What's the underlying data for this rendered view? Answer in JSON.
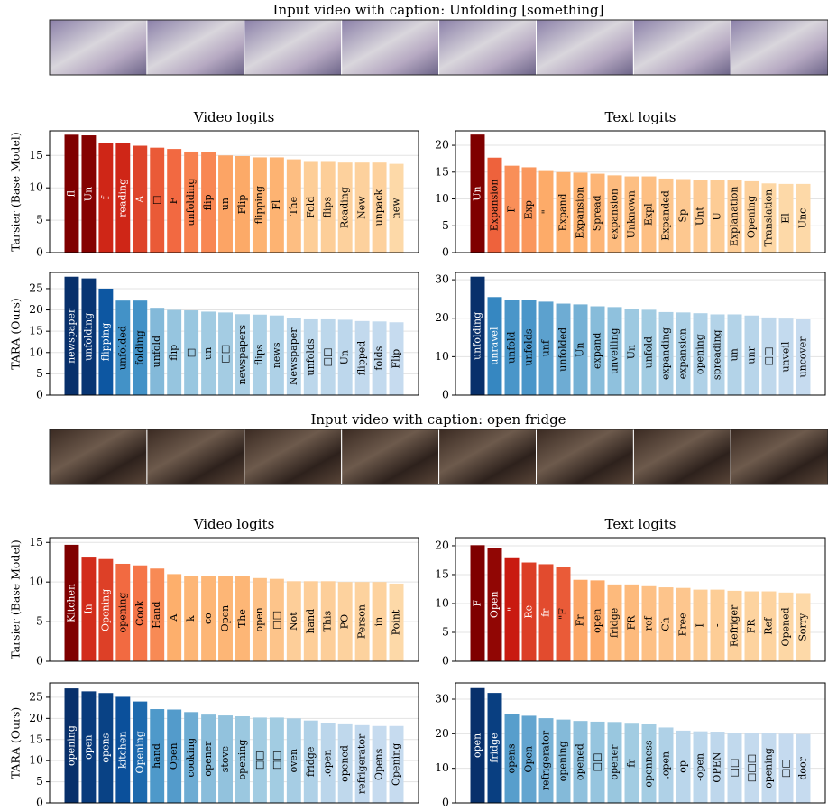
{
  "videos": [
    {
      "caption": "Input video with caption: Unfolding [something]"
    },
    {
      "caption": "Input video with caption: open fridge"
    }
  ],
  "chart_data": [
    {
      "type": "bar",
      "title": "Video logits",
      "ylabel": "Tarsier (Base Model)",
      "ylim": [
        0,
        18.8
      ],
      "yticks": [
        0,
        5,
        10,
        15
      ],
      "grid": true,
      "colormap": [
        "#7f0000",
        "#c8190f",
        "#f46d43",
        "#fdae6b",
        "#fdd9a8"
      ],
      "categories": [
        "fl",
        "Un",
        "f",
        "reading",
        "A",
        "□",
        "F",
        "unfolding",
        "flip",
        "un",
        "Flip",
        "flipping",
        "Fl",
        "The",
        "Fold",
        "flips",
        "Reading",
        "New",
        "unpack",
        "new"
      ],
      "values": [
        18.2,
        18.1,
        16.9,
        16.9,
        16.5,
        16.2,
        16.0,
        15.6,
        15.5,
        15.0,
        14.9,
        14.7,
        14.7,
        14.4,
        14.0,
        14.0,
        13.9,
        13.9,
        13.9,
        13.7
      ]
    },
    {
      "type": "bar",
      "title": "Text logits",
      "ylim": [
        0,
        22.7
      ],
      "yticks": [
        0,
        5,
        10,
        15,
        20
      ],
      "grid": true,
      "colormap": [
        "#7f0000",
        "#c8190f",
        "#f46d43",
        "#fdae6b",
        "#fdd9a8"
      ],
      "categories": [
        "Un",
        "Expansion",
        "F",
        "Exp",
        "\"",
        "Expand",
        "Expansion",
        "Spread",
        "expansion",
        "Unknown",
        "Expl",
        "Expanded",
        "Sp",
        "Unt",
        "U",
        "Explanation",
        "Opening",
        "Translation",
        "El",
        "Unc"
      ],
      "values": [
        22.0,
        17.7,
        16.2,
        15.9,
        15.2,
        15.0,
        14.9,
        14.7,
        14.4,
        14.2,
        14.2,
        13.8,
        13.7,
        13.6,
        13.5,
        13.5,
        13.3,
        12.9,
        12.8,
        12.8
      ]
    },
    {
      "type": "bar",
      "ylabel": "TARA (Ours)",
      "ylim": [
        0,
        28.8
      ],
      "yticks": [
        0,
        5,
        10,
        15,
        20,
        25
      ],
      "grid": true,
      "colormap": [
        "#08306b",
        "#0b54a0",
        "#3a8cc4",
        "#9ecae1",
        "#c6dbef"
      ],
      "categories": [
        "newspaper",
        "unfolding",
        "flipping",
        "unfolded",
        "folding",
        "unfold",
        "flip",
        "□",
        "un",
        "□□",
        "newspapers",
        "flips",
        "news",
        "Newspaper",
        "unfolds",
        "□□",
        "Un",
        "flipped",
        "folds",
        "Flip"
      ],
      "values": [
        27.8,
        27.4,
        25.0,
        22.2,
        22.2,
        20.5,
        20.0,
        19.9,
        19.6,
        19.4,
        19.0,
        18.9,
        18.7,
        18.1,
        17.8,
        17.8,
        17.7,
        17.4,
        17.3,
        17.1
      ]
    },
    {
      "type": "bar",
      "ylim": [
        0,
        31.9
      ],
      "yticks": [
        0,
        10,
        20,
        30
      ],
      "grid": true,
      "colormap": [
        "#08306b",
        "#0b54a0",
        "#3a8cc4",
        "#9ecae1",
        "#c6dbef"
      ],
      "categories": [
        "unfolding",
        "unravel",
        "unfold",
        "unfolds",
        "unf",
        "unfolded",
        "Un",
        "expand",
        "unveiling",
        "Un",
        "unfold",
        "expanding",
        "expansion",
        "opening",
        "spreading",
        "un",
        "unr",
        "□□",
        "unveil",
        "uncover"
      ],
      "values": [
        30.8,
        25.5,
        24.8,
        24.8,
        24.3,
        23.8,
        23.6,
        23.1,
        22.9,
        22.5,
        22.2,
        21.6,
        21.5,
        21.3,
        21.0,
        21.0,
        20.7,
        20.2,
        19.9,
        19.7
      ]
    },
    {
      "type": "bar",
      "title": "Video logits",
      "ylabel": "Tarsier (Base Model)",
      "ylim": [
        0,
        15.6
      ],
      "yticks": [
        0,
        5,
        10,
        15
      ],
      "grid": true,
      "colormap": [
        "#7f0000",
        "#c8190f",
        "#f46d43",
        "#fdae6b",
        "#fdd9a8"
      ],
      "categories": [
        "Kitchen",
        "In",
        "Opening",
        "opening",
        "Cook",
        "Hand",
        "A",
        "k",
        "co",
        "Open",
        "The",
        "open",
        "□□",
        "Not",
        "hand",
        "This",
        "PO",
        "Person",
        "in",
        "Point"
      ],
      "values": [
        14.7,
        13.2,
        12.9,
        12.3,
        12.1,
        11.7,
        11.0,
        10.8,
        10.8,
        10.8,
        10.8,
        10.5,
        10.4,
        10.1,
        10.1,
        10.1,
        10.0,
        10.0,
        10.0,
        9.8
      ]
    },
    {
      "type": "bar",
      "title": "Text logits",
      "ylim": [
        0,
        21.4
      ],
      "yticks": [
        0,
        5,
        10,
        15,
        20
      ],
      "grid": true,
      "colormap": [
        "#7f0000",
        "#c8190f",
        "#f46d43",
        "#fdae6b",
        "#fdd9a8"
      ],
      "categories": [
        "F",
        "Open",
        "\"",
        "Re",
        "fr",
        "\"F",
        "Fr",
        "open",
        "fridge",
        "FR",
        "ref",
        "Ch",
        "Free",
        "I",
        "-",
        "Refriger",
        "FR",
        "Ref",
        "Opened",
        "Sorry"
      ],
      "values": [
        20.1,
        19.6,
        18.0,
        17.1,
        16.8,
        16.4,
        14.1,
        14.0,
        13.3,
        13.3,
        13.0,
        12.8,
        12.7,
        12.4,
        12.4,
        12.2,
        12.1,
        12.1,
        11.9,
        11.8
      ]
    },
    {
      "type": "bar",
      "ylabel": "TARA (Ours)",
      "ylim": [
        0,
        28.4
      ],
      "yticks": [
        0,
        5,
        10,
        15,
        20,
        25
      ],
      "grid": true,
      "colormap": [
        "#08306b",
        "#0b54a0",
        "#3a8cc4",
        "#9ecae1",
        "#c6dbef"
      ],
      "categories": [
        "opening",
        "open",
        "opens",
        "kitchen",
        "Opening",
        "hand",
        "Open",
        "cooking",
        "opener",
        "stove",
        "opening",
        "□□",
        "□□",
        "oven",
        "fridge",
        ".open",
        "opened",
        "refrigerator",
        "Opens",
        "Opening"
      ],
      "values": [
        27.1,
        26.4,
        26.0,
        25.1,
        24.0,
        22.2,
        22.1,
        21.5,
        20.9,
        20.7,
        20.5,
        20.2,
        20.2,
        20.0,
        19.5,
        18.8,
        18.6,
        18.4,
        18.2,
        18.2
      ]
    },
    {
      "type": "bar",
      "ylim": [
        0,
        34.7
      ],
      "yticks": [
        0,
        10,
        20,
        30
      ],
      "grid": true,
      "colormap": [
        "#08306b",
        "#0b54a0",
        "#3a8cc4",
        "#9ecae1",
        "#c6dbef"
      ],
      "categories": [
        "open",
        "fridge",
        "opens",
        "Open",
        "refrigerator",
        "opening",
        "opened",
        "□□",
        "opener",
        "fr",
        "openness",
        ".open",
        "op",
        "-open",
        "OPEN",
        "□□",
        "□□□",
        "opening",
        "□□",
        "door"
      ],
      "values": [
        33.2,
        31.8,
        25.6,
        25.2,
        24.5,
        24.1,
        23.7,
        23.5,
        23.4,
        22.9,
        22.7,
        21.8,
        20.9,
        20.7,
        20.6,
        20.3,
        20.1,
        20.1,
        20.0,
        19.9
      ]
    }
  ]
}
